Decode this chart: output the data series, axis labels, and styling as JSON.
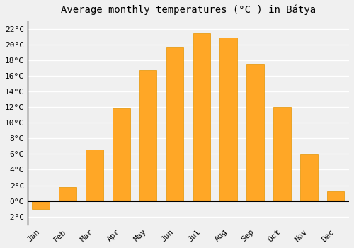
{
  "months": [
    "Jan",
    "Feb",
    "Mar",
    "Apr",
    "May",
    "Jun",
    "Jul",
    "Aug",
    "Sep",
    "Oct",
    "Nov",
    "Dec"
  ],
  "temperatures": [
    -1.0,
    1.8,
    6.6,
    11.8,
    16.7,
    19.6,
    21.4,
    20.9,
    17.4,
    12.0,
    5.9,
    1.2
  ],
  "bar_color": "#FFA726",
  "bar_edge_color": "#E59400",
  "title": "Average monthly temperatures (°C ) in Bátya",
  "ylim": [
    -3,
    23
  ],
  "yticks": [
    -2,
    0,
    2,
    4,
    6,
    8,
    10,
    12,
    14,
    16,
    18,
    20,
    22
  ],
  "ytick_labels": [
    "-2°C",
    "0°C",
    "2°C",
    "4°C",
    "6°C",
    "8°C",
    "10°C",
    "12°C",
    "14°C",
    "16°C",
    "18°C",
    "20°C",
    "22°C"
  ],
  "background_color": "#f0f0f0",
  "plot_bg_color": "#f0f0f0",
  "grid_color": "#ffffff",
  "title_fontsize": 10,
  "tick_fontsize": 8,
  "bar_width": 0.65
}
